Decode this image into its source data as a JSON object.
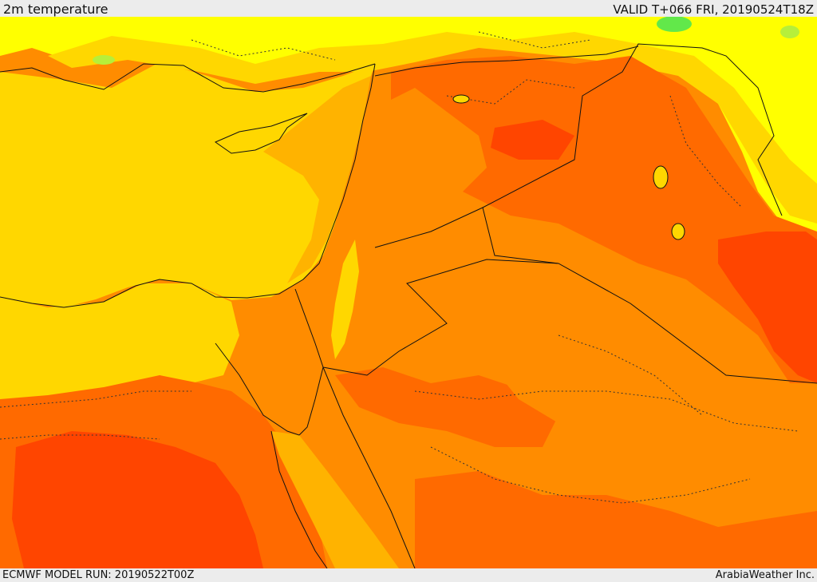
{
  "header": {
    "title": "2m temperature",
    "valid_label": "VALID T+066 FRI, 20190524T18Z"
  },
  "footer": {
    "model_run": "ECMWF MODEL RUN: 20190522T00Z",
    "credit": "ArabiaWeather Inc."
  },
  "map": {
    "field": "2m temperature",
    "palette": {
      "light_green": "#b6ef3a",
      "green": "#62e84a",
      "yellow": "#ffff00",
      "yellow_orange": "#ffd700",
      "light_orange": "#ffb300",
      "orange": "#ff8c00",
      "dark_orange": "#ff6a00",
      "red_orange": "#ff4500",
      "red": "#ee2200"
    },
    "boundary_color": "#111111"
  }
}
